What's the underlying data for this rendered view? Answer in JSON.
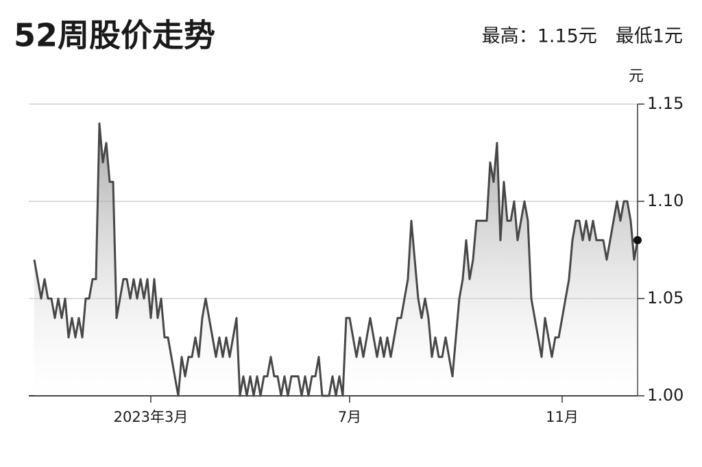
{
  "chart_data": {
    "type": "line",
    "title": "52周股价走势",
    "subtitle": "最高：1.15元　最低1元",
    "y_unit": "元",
    "color": "#474747",
    "area": true,
    "grid": true,
    "y_axis_side": "right",
    "ylim": [
      1.0,
      1.15
    ],
    "yticks": [
      {
        "value": 1.0,
        "label": "1.00"
      },
      1.05,
      {
        "value": 1.1,
        "label": "1.10"
      },
      1.15
    ],
    "categories": [
      null,
      null,
      null,
      null,
      null,
      null,
      null,
      null,
      null,
      null,
      null,
      null,
      null,
      null,
      null,
      null,
      null,
      null,
      null,
      null,
      null,
      null,
      null,
      null,
      null,
      null,
      null,
      null,
      null,
      null,
      null,
      null,
      null,
      null,
      "2023年3月",
      null,
      null,
      null,
      null,
      null,
      null,
      null,
      null,
      null,
      null,
      null,
      null,
      null,
      null,
      null,
      null,
      null,
      null,
      null,
      null,
      null,
      null,
      null,
      null,
      null,
      null,
      null,
      null,
      null,
      null,
      null,
      null,
      null,
      null,
      null,
      null,
      null,
      null,
      null,
      null,
      null,
      null,
      null,
      null,
      null,
      null,
      null,
      null,
      null,
      null,
      null,
      null,
      null,
      null,
      null,
      null,
      null,
      "7月",
      null,
      null,
      null,
      null,
      null,
      null,
      null,
      null,
      null,
      null,
      null,
      null,
      null,
      null,
      null,
      null,
      null,
      null,
      null,
      null,
      null,
      null,
      null,
      null,
      null,
      null,
      null,
      null,
      null,
      null,
      null,
      null,
      null,
      null,
      null,
      null,
      null,
      null,
      null,
      null,
      null,
      null,
      null,
      null,
      null,
      null,
      null,
      null,
      null,
      null,
      null,
      null,
      null,
      null,
      null,
      null,
      null,
      null,
      null,
      null,
      null,
      "11月",
      null,
      null,
      null,
      null,
      null,
      null,
      null,
      null,
      null,
      null,
      null,
      null,
      null,
      null,
      null,
      null,
      null,
      null,
      null,
      null,
      null,
      null
    ],
    "values": [
      1.07,
      1.06,
      1.05,
      1.06,
      1.05,
      1.05,
      1.04,
      1.05,
      1.04,
      1.05,
      1.03,
      1.04,
      1.03,
      1.04,
      1.03,
      1.05,
      1.05,
      1.06,
      1.06,
      1.14,
      1.12,
      1.13,
      1.11,
      1.11,
      1.04,
      1.05,
      1.06,
      1.06,
      1.05,
      1.06,
      1.05,
      1.06,
      1.05,
      1.06,
      1.04,
      1.06,
      1.04,
      1.05,
      1.03,
      1.03,
      1.02,
      1.01,
      1.0,
      1.02,
      1.01,
      1.02,
      1.02,
      1.03,
      1.02,
      1.04,
      1.05,
      1.04,
      1.03,
      1.02,
      1.03,
      1.02,
      1.03,
      1.02,
      1.03,
      1.04,
      1.0,
      1.01,
      1.0,
      1.01,
      1.0,
      1.01,
      1.0,
      1.01,
      1.01,
      1.02,
      1.01,
      1.01,
      1.0,
      1.01,
      1.0,
      1.01,
      1.01,
      1.01,
      1.0,
      1.01,
      1.0,
      1.01,
      1.01,
      1.02,
      1.0,
      1.0,
      1.0,
      1.01,
      1.0,
      1.01,
      1.0,
      1.04,
      1.04,
      1.03,
      1.02,
      1.03,
      1.02,
      1.03,
      1.04,
      1.03,
      1.02,
      1.03,
      1.02,
      1.03,
      1.02,
      1.03,
      1.04,
      1.04,
      1.05,
      1.06,
      1.09,
      1.07,
      1.05,
      1.04,
      1.05,
      1.04,
      1.02,
      1.03,
      1.02,
      1.02,
      1.03,
      1.02,
      1.01,
      1.03,
      1.05,
      1.06,
      1.08,
      1.06,
      1.07,
      1.09,
      1.09,
      1.09,
      1.09,
      1.12,
      1.11,
      1.13,
      1.08,
      1.11,
      1.09,
      1.09,
      1.1,
      1.08,
      1.09,
      1.1,
      1.09,
      1.05,
      1.04,
      1.03,
      1.02,
      1.04,
      1.03,
      1.02,
      1.03,
      1.03,
      1.04,
      1.05,
      1.06,
      1.08,
      1.09,
      1.09,
      1.08,
      1.09,
      1.08,
      1.09,
      1.08,
      1.08,
      1.08,
      1.07,
      1.08,
      1.09,
      1.1,
      1.09,
      1.1,
      1.1,
      1.09,
      1.07,
      1.08
    ]
  }
}
